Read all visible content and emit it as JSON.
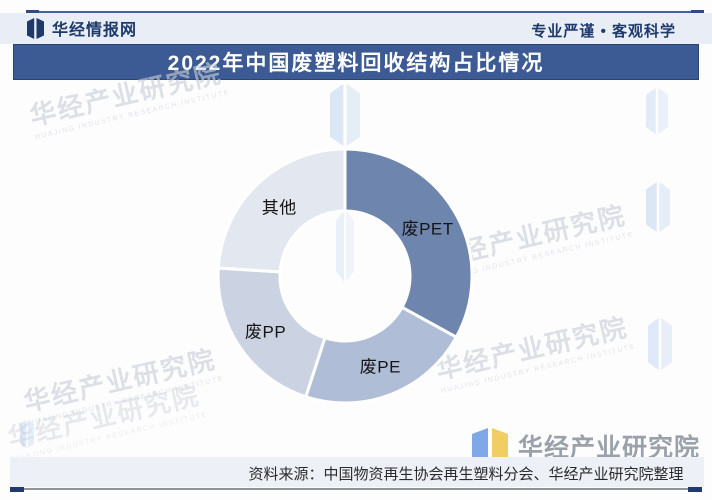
{
  "header": {
    "logo_text": "华经情报网",
    "slogan": "专业严谨 • 客观科学"
  },
  "title_bar": {
    "title": "2022年中国废塑料回收结构占比情况"
  },
  "chart_data": {
    "type": "pie",
    "donut": true,
    "start_angle_deg": 0,
    "direction": "clockwise",
    "categories": [
      "废PET",
      "废PE",
      "废PP",
      "其他"
    ],
    "values": [
      33,
      22,
      21,
      24
    ],
    "unit": "%",
    "value_note": "percentages estimated from arc angles; no numeric labels shown in chart",
    "colors": [
      "#6e86ad",
      "#afbed6",
      "#cbd3e2",
      "#e3e7ef"
    ],
    "separator_color": "#ffffff",
    "label_color": "#151515",
    "legend_position": "on-slice"
  },
  "watermark": {
    "text": "华经产业研究院",
    "subtext": "HUAJING INDUSTRY RESEARCH INSTITUTE"
  },
  "footer": {
    "brand": "华经产业研究院",
    "source": "资料来源：中国物资再生协会再生塑料分会、华经产业研究院整理"
  },
  "colors": {
    "accent_navy": "#1e3a6b",
    "title_bar_bg": "#3c5a93",
    "header_band_bg": "#e9eef6",
    "source_band_bg": "#edf0f6",
    "brand_icon_blue": "#7fa9e6",
    "brand_icon_yellow": "#f2cd63"
  }
}
